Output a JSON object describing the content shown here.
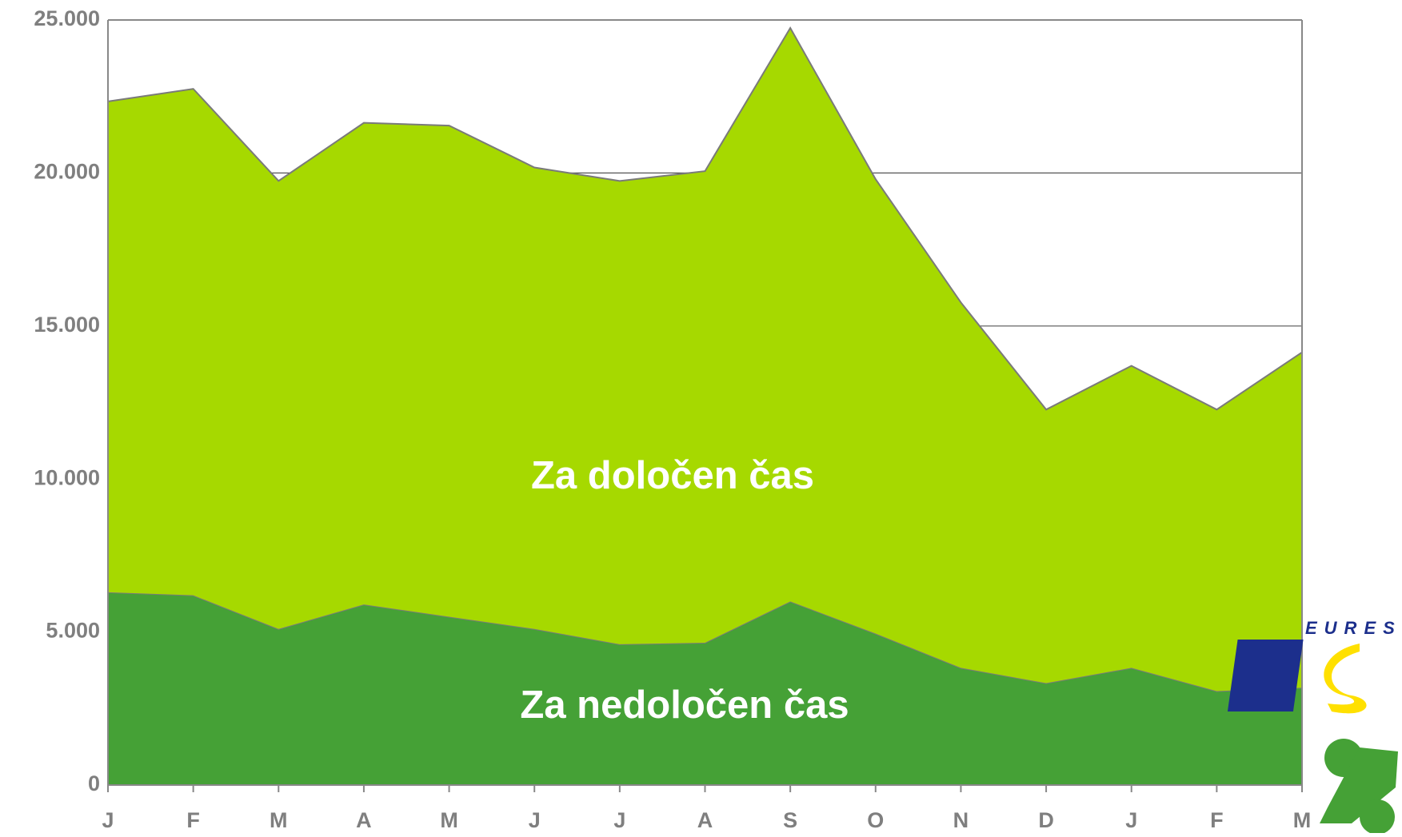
{
  "chart_data": {
    "type": "stacked_area",
    "categories": [
      "J",
      "F",
      "M",
      "A",
      "M",
      "J",
      "J",
      "A",
      "S",
      "O",
      "N",
      "D",
      "J",
      "F",
      "M"
    ],
    "series": [
      {
        "name": "Za nedoločen čas",
        "color": "#45a136",
        "values": [
          6300,
          6200,
          5100,
          5900,
          5500,
          5100,
          4600,
          4650,
          6000,
          4950,
          3830,
          3330,
          3830,
          3070,
          3180
        ]
      },
      {
        "name": "Za določen čas",
        "color": "#a6d900",
        "values": [
          16040,
          16550,
          14640,
          15740,
          16050,
          15080,
          15140,
          15410,
          18740,
          14850,
          11940,
          8940,
          9870,
          9200,
          10960
        ]
      }
    ],
    "ylim": [
      0,
      25000
    ],
    "yticks": [
      0,
      {
        "value": 5000,
        "label": "5.000"
      },
      {
        "value": 10000,
        "label": "10.000"
      },
      {
        "value": 15000,
        "label": "15.000"
      },
      {
        "value": 20000,
        "label": "20.000"
      },
      {
        "value": 25000,
        "label": "25.000"
      }
    ],
    "grid": true
  },
  "logo_text": "EURES"
}
